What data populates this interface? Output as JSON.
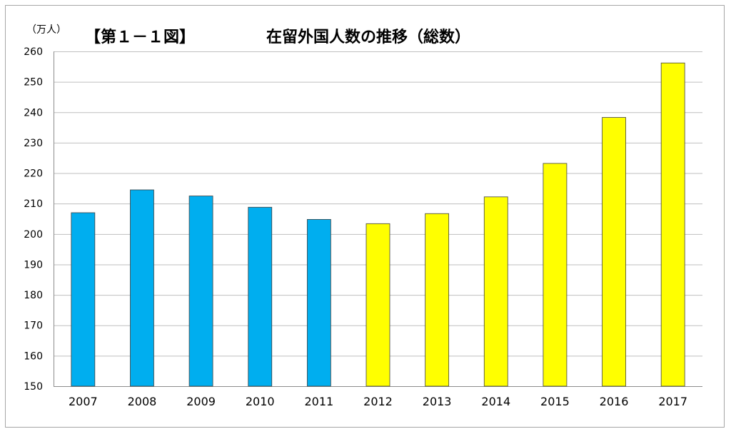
{
  "chart_data": {
    "type": "bar",
    "figure_label": "【第１－１図】",
    "title": "在留外国人数の推移（総数）",
    "y_unit_label": "（万人）",
    "xlabel": "",
    "ylabel": "",
    "categories": [
      "2007",
      "2008",
      "2009",
      "2010",
      "2011",
      "2012",
      "2013",
      "2014",
      "2015",
      "2016",
      "2017"
    ],
    "values": [
      207.0,
      214.5,
      212.5,
      208.8,
      204.8,
      203.4,
      206.7,
      212.2,
      223.2,
      238.3,
      256.2
    ],
    "bar_colors": [
      "#00aeef",
      "#00aeef",
      "#00aeef",
      "#00aeef",
      "#00aeef",
      "#ffff00",
      "#ffff00",
      "#ffff00",
      "#ffff00",
      "#ffff00",
      "#ffff00"
    ],
    "ylim": [
      150,
      260
    ],
    "yticks": [
      150,
      160,
      170,
      180,
      190,
      200,
      210,
      220,
      230,
      240,
      250,
      260
    ],
    "grid": true,
    "legend": "none"
  }
}
